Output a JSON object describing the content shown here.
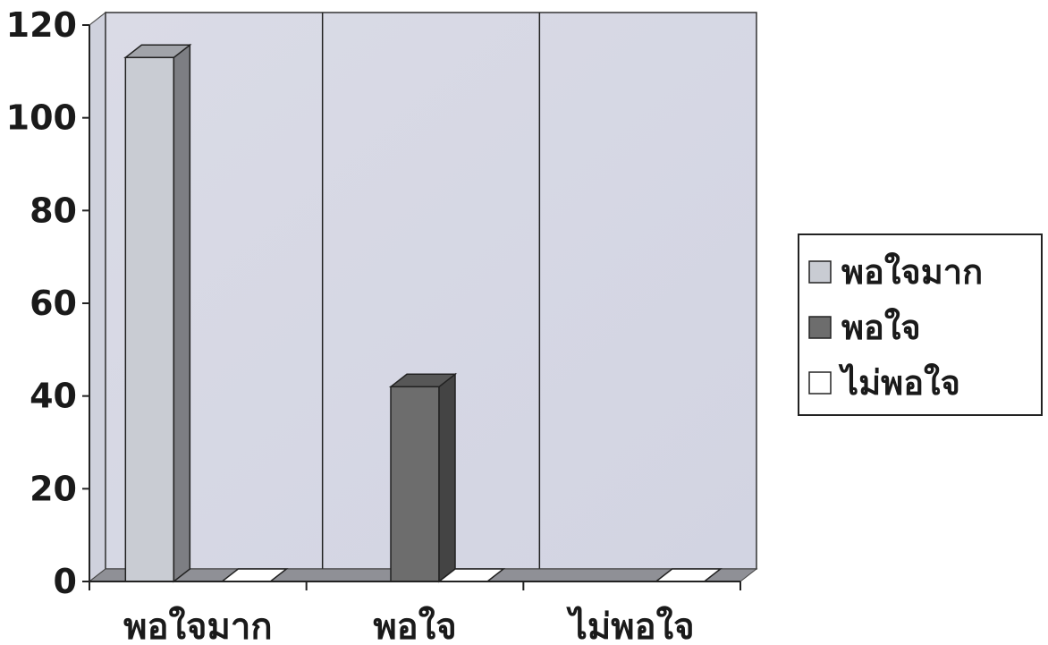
{
  "chart_data": {
    "type": "bar",
    "style": "3d-clustered-column",
    "categories": [
      "พอใจมาก",
      "พอใจ",
      "ไม่พอใจ"
    ],
    "series": [
      {
        "name": "พอใจมาก",
        "color": "#c9ccd3",
        "values": [
          113,
          0,
          0
        ]
      },
      {
        "name": "พอใจ",
        "color": "#6d6d6d",
        "values": [
          0,
          42,
          0
        ]
      },
      {
        "name": "ไม่พอใจ",
        "color": "#ffffff",
        "values": [
          0,
          0,
          0
        ]
      }
    ],
    "title": "",
    "xlabel": "",
    "ylabel": "",
    "ylim": [
      0,
      120
    ],
    "yticks": [
      0,
      20,
      40,
      60,
      80,
      100,
      120
    ],
    "grid": false,
    "legend": "right",
    "colors": {
      "back_wall": "#d7d9e6",
      "side_wall": "#cfd1dd",
      "floor": "#8f9096",
      "axis": "#222222"
    }
  }
}
